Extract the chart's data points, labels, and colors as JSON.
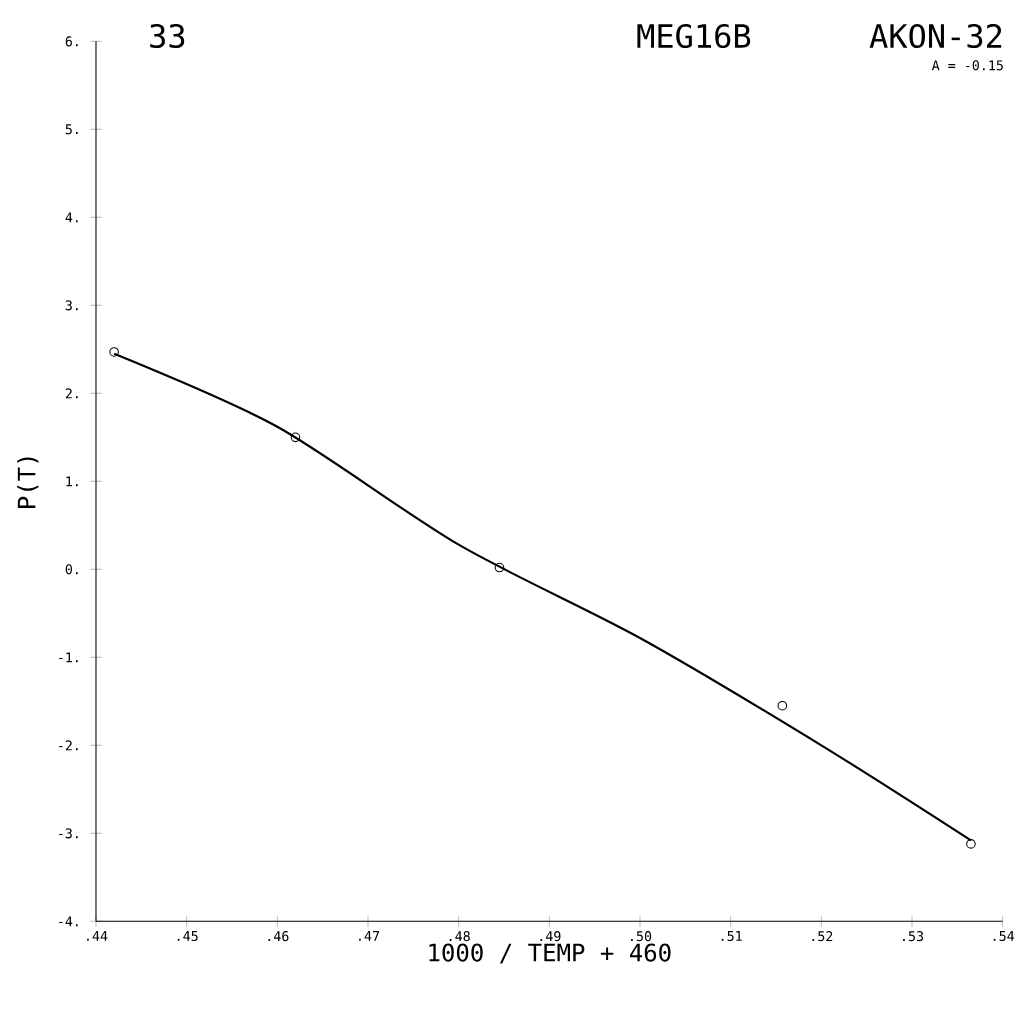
{
  "chart_data": {
    "type": "scatter",
    "title": "33",
    "xlabel": "1000 / TEMP + 460",
    "ylabel": "P(T)",
    "annotations": [
      "MEG16B",
      "AKON-32",
      "A = -0.15"
    ],
    "series": [
      {
        "color": "#000000",
        "marker": "circle",
        "x": [
          0.442,
          0.462,
          0.4845,
          0.5157,
          0.5365
        ],
        "values": [
          2.47,
          1.5,
          0.02,
          -1.55,
          -3.12
        ]
      },
      {
        "type": "line",
        "color": "#000000",
        "x": [
          0.442,
          0.46,
          0.48,
          0.5,
          0.52,
          0.5365
        ],
        "values": [
          2.45,
          1.62,
          0.28,
          -0.78,
          -2.0,
          -3.08
        ]
      }
    ],
    "xlim": [
      0.44,
      0.54
    ],
    "ylim": [
      -4,
      6
    ],
    "xticks": [
      {
        "value": 0.44,
        "label": ".44"
      },
      {
        "value": 0.45,
        "label": ".45"
      },
      {
        "value": 0.46,
        "label": ".46"
      },
      {
        "value": 0.47,
        "label": ".47"
      },
      {
        "value": 0.48,
        "label": ".48"
      },
      {
        "value": 0.49,
        "label": ".49"
      },
      {
        "value": 0.5,
        "label": ".50"
      },
      {
        "value": 0.51,
        "label": ".51"
      },
      {
        "value": 0.52,
        "label": ".52"
      },
      {
        "value": 0.53,
        "label": ".53"
      },
      {
        "value": 0.54,
        "label": ".54"
      }
    ],
    "yticks": [
      {
        "value": -4,
        "label": "-4."
      },
      {
        "value": -3,
        "label": "-3."
      },
      {
        "value": -2,
        "label": "-2."
      },
      {
        "value": -1,
        "label": "-1."
      },
      {
        "value": 0,
        "label": "0."
      },
      {
        "value": 1,
        "label": "1."
      },
      {
        "value": 2,
        "label": "2."
      },
      {
        "value": 3,
        "label": "3."
      },
      {
        "value": 4,
        "label": "4."
      },
      {
        "value": 5,
        "label": "5."
      },
      {
        "value": 6,
        "label": "6."
      }
    ],
    "grid": false
  }
}
